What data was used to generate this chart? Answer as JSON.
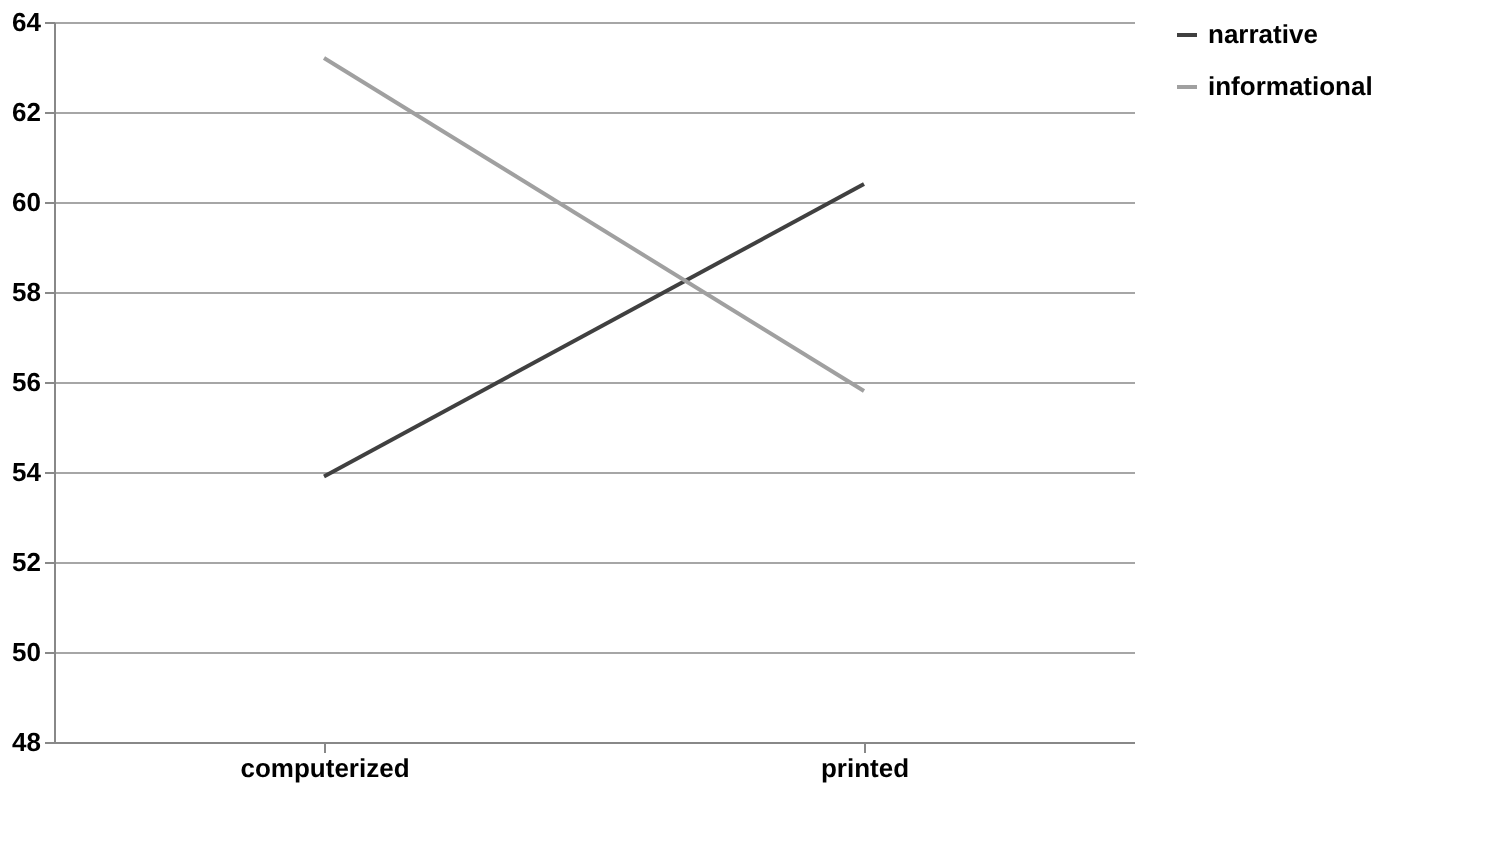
{
  "chart_data": {
    "type": "line",
    "categories": [
      "computerized",
      "printed"
    ],
    "series": [
      {
        "name": "narrative",
        "color": "#404040",
        "values": [
          53.9,
          60.4
        ]
      },
      {
        "name": "informational",
        "color": "#a0a0a0",
        "values": [
          63.2,
          55.8
        ]
      }
    ],
    "ylim": [
      48,
      64
    ],
    "yticks": [
      48,
      50,
      52,
      54,
      56,
      58,
      60,
      62,
      64
    ],
    "grid": "y",
    "legend": "right",
    "marker": "none",
    "line_style": "solid"
  }
}
